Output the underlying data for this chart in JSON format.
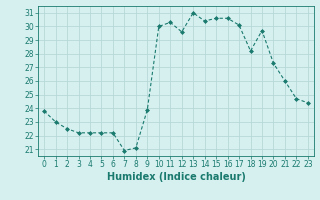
{
  "x": [
    0,
    1,
    2,
    3,
    4,
    5,
    6,
    7,
    8,
    9,
    10,
    11,
    12,
    13,
    14,
    15,
    16,
    17,
    18,
    19,
    20,
    21,
    22,
    23
  ],
  "y": [
    23.8,
    23.0,
    22.5,
    22.2,
    22.2,
    22.2,
    22.2,
    20.9,
    21.1,
    23.9,
    30.0,
    30.3,
    29.6,
    31.0,
    30.4,
    30.6,
    30.6,
    30.1,
    28.2,
    29.7,
    27.3,
    26.0,
    24.7,
    24.4
  ],
  "line_color": "#1a7a6e",
  "marker": "D",
  "marker_size": 2.0,
  "bg_color": "#d6f0f0",
  "grid_color": "#b8d8d8",
  "xlabel": "Humidex (Indice chaleur)",
  "xlim": [
    -0.5,
    23.5
  ],
  "ylim": [
    20.5,
    31.5
  ],
  "yticks": [
    21,
    22,
    23,
    24,
    25,
    26,
    27,
    28,
    29,
    30,
    31
  ],
  "xticks": [
    0,
    1,
    2,
    3,
    4,
    5,
    6,
    7,
    8,
    9,
    10,
    11,
    12,
    13,
    14,
    15,
    16,
    17,
    18,
    19,
    20,
    21,
    22,
    23
  ],
  "tick_color": "#1a7a6e",
  "tick_label_fontsize": 5.5,
  "xlabel_fontsize": 7.0,
  "linewidth": 0.8
}
